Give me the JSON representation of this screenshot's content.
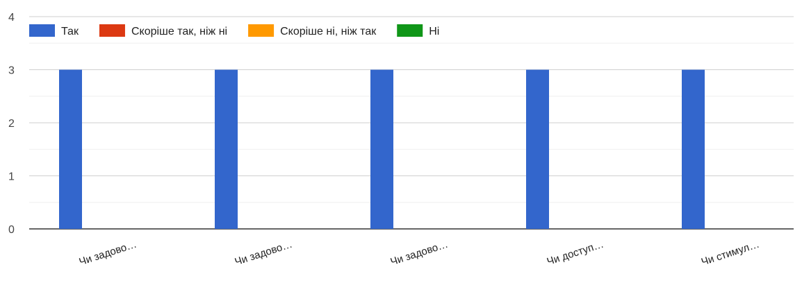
{
  "chart_data": {
    "type": "bar",
    "categories": [
      "Чи задово…",
      "Чи задово…",
      "Чи задово…",
      "Чи доступ…",
      "Чи стимул…"
    ],
    "series": [
      {
        "name": "Так",
        "values": [
          3,
          3,
          3,
          3,
          3
        ],
        "color": "#3366cc"
      },
      {
        "name": "Скоріше так, ніж ні",
        "values": [
          0,
          0,
          0,
          0,
          0
        ],
        "color": "#dc3912"
      },
      {
        "name": "Скоріше ні, ніж так",
        "values": [
          0,
          0,
          0,
          0,
          0
        ],
        "color": "#ff9900"
      },
      {
        "name": "Ні",
        "values": [
          0,
          0,
          0,
          0,
          0
        ],
        "color": "#109618"
      }
    ],
    "yticks": [
      "0",
      "1",
      "2",
      "3",
      "4"
    ],
    "ylim": [
      0,
      4
    ],
    "grid": true,
    "legend_position": "top-left",
    "title": "",
    "xlabel": "",
    "ylabel": ""
  }
}
